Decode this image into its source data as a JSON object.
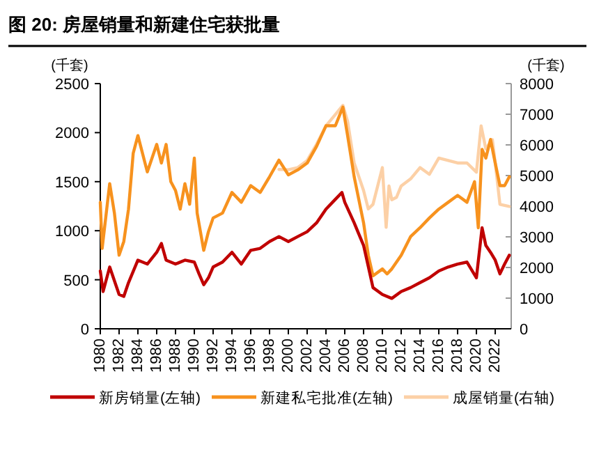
{
  "chart_data": {
    "type": "line",
    "title": "图 20: 房屋销量和新建住宅获批量",
    "ylabel": "(千套)",
    "y2label": "(千套)",
    "xlim": [
      1980,
      2023.7
    ],
    "xticks": [
      1980,
      1982,
      1984,
      1986,
      1988,
      1990,
      1992,
      1994,
      1996,
      1998,
      2000,
      2002,
      2004,
      2006,
      2008,
      2010,
      2012,
      2014,
      2016,
      2018,
      2020,
      2022
    ],
    "ylim": [
      0,
      2500
    ],
    "yticks": [
      0,
      500,
      1000,
      1500,
      2000,
      2500
    ],
    "y2lim": [
      0,
      8000
    ],
    "y2ticks": [
      0,
      1000,
      2000,
      3000,
      4000,
      5000,
      6000,
      7000,
      8000
    ],
    "grid": false,
    "legend": "bottom",
    "series": [
      {
        "name": "新房销量(左轴)",
        "color": "#c00000",
        "x": [
          1980,
          1980.3,
          1981,
          1982,
          1982.5,
          1983,
          1984,
          1985,
          1986,
          1986.5,
          1987,
          1988,
          1989,
          1990,
          1990.5,
          1991,
          1991.5,
          1992,
          1993,
          1994,
          1995,
          1996,
          1997,
          1998,
          1999,
          2000,
          2001,
          2002,
          2003,
          2004,
          2005,
          2005.7,
          2006,
          2007,
          2008,
          2009,
          2010,
          2011,
          2012,
          2013,
          2014,
          2015,
          2016,
          2017,
          2018,
          2019,
          2020,
          2020.6,
          2021,
          2021.5,
          2022,
          2022.5,
          2023,
          2023.5
        ],
        "values": [
          590,
          380,
          630,
          350,
          330,
          470,
          700,
          660,
          780,
          870,
          700,
          660,
          700,
          680,
          560,
          450,
          520,
          630,
          680,
          780,
          660,
          800,
          820,
          890,
          940,
          890,
          940,
          990,
          1080,
          1220,
          1320,
          1390,
          1290,
          1080,
          850,
          420,
          350,
          310,
          380,
          420,
          470,
          520,
          590,
          630,
          660,
          680,
          520,
          1030,
          850,
          780,
          700,
          560,
          660,
          750
        ]
      },
      {
        "name": "新建私宅批准(左轴)",
        "color": "#f7921e",
        "x": [
          1980,
          1980.2,
          1981,
          1981.5,
          1982,
          1982.5,
          1983,
          1983.5,
          1984,
          1985,
          1985.5,
          1986,
          1986.5,
          1987,
          1987.5,
          1988,
          1988.5,
          1989,
          1989.5,
          1990,
          1990.3,
          1991,
          1991.5,
          1992,
          1993,
          1994,
          1995,
          1996,
          1997,
          1998,
          1999,
          2000,
          2001,
          2002,
          2003,
          2004,
          2005,
          2005.8,
          2006.3,
          2007,
          2008,
          2008.5,
          2009,
          2010,
          2010.5,
          2011,
          2012,
          2013,
          2014,
          2015,
          2016,
          2017,
          2018,
          2019,
          2019.8,
          2020.2,
          2020.6,
          2021,
          2021.5,
          2022,
          2022.5,
          2023,
          2023.5
        ],
        "values": [
          1290,
          820,
          1480,
          1180,
          750,
          890,
          1220,
          1790,
          1970,
          1600,
          1740,
          1880,
          1690,
          1880,
          1500,
          1410,
          1220,
          1480,
          1270,
          1740,
          1180,
          800,
          990,
          1130,
          1180,
          1390,
          1290,
          1460,
          1390,
          1550,
          1720,
          1570,
          1620,
          1690,
          1860,
          2070,
          2070,
          2260,
          1970,
          1550,
          1080,
          750,
          540,
          610,
          560,
          610,
          750,
          940,
          1030,
          1130,
          1220,
          1290,
          1360,
          1290,
          1500,
          1030,
          1830,
          1740,
          1930,
          1690,
          1460,
          1460,
          1550
        ]
      },
      {
        "name": "成屋销量(右轴)",
        "color": "#fcd0a6",
        "axis": "y2",
        "x": [
          1999,
          2000,
          2001,
          2002,
          2003,
          2004,
          2005,
          2005.8,
          2006.3,
          2007,
          2008,
          2008.5,
          2009,
          2010,
          2010.4,
          2010.7,
          2011,
          2011.5,
          2012,
          2013,
          2014,
          2015,
          2016,
          2017,
          2018,
          2019,
          2020,
          2020.5,
          2021,
          2021.7,
          2022,
          2022.5,
          2023.5
        ],
        "values": [
          5200,
          5190,
          5260,
          5490,
          6020,
          6620,
          6990,
          7290,
          6770,
          5410,
          4510,
          3910,
          4060,
          5260,
          3310,
          4660,
          4210,
          4290,
          4660,
          4890,
          5260,
          5040,
          5570,
          5490,
          5410,
          5410,
          5110,
          6620,
          5870,
          6170,
          5410,
          4060,
          3990
        ]
      }
    ]
  }
}
